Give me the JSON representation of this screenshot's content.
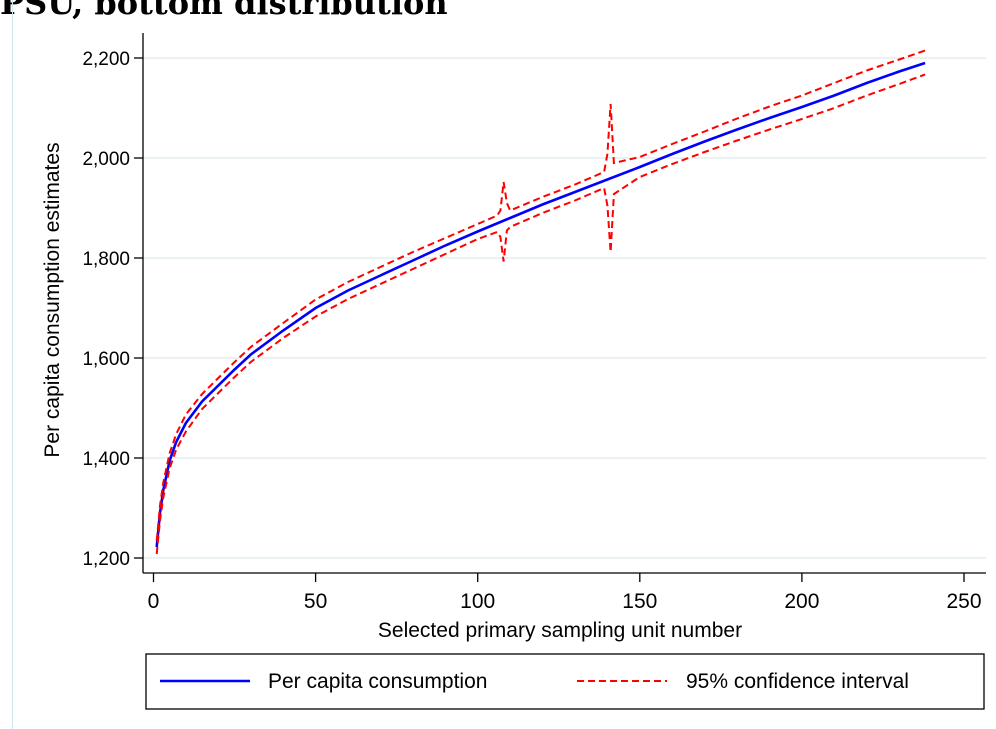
{
  "page": {
    "title_fragment": "PSU, bottom distribution"
  },
  "chart_data": {
    "type": "line",
    "xlabel": "Selected primary sampling unit number",
    "ylabel": "Per capita consumption estimates",
    "xlim": [
      0,
      250
    ],
    "ylim": [
      1200,
      2200
    ],
    "xticks": [
      0,
      50,
      100,
      150,
      200,
      250
    ],
    "xtick_labels": [
      "0",
      "50",
      "100",
      "150",
      "200",
      "250"
    ],
    "yticks": [
      1200,
      1400,
      1600,
      1800,
      2000,
      2200
    ],
    "ytick_labels": [
      "1,200",
      "1,400",
      "1,600",
      "1,800",
      "2,000",
      "2,200"
    ],
    "grid": "horizontal",
    "legend_position": "bottom",
    "series": [
      {
        "name": "Per capita consumption",
        "color": "#0000ff",
        "style": "solid",
        "x": [
          1,
          2,
          3,
          5,
          7,
          10,
          15,
          20,
          25,
          30,
          40,
          50,
          60,
          70,
          80,
          90,
          100,
          110,
          120,
          130,
          140,
          150,
          160,
          170,
          180,
          190,
          200,
          210,
          220,
          230,
          238
        ],
        "y": [
          1222,
          1290,
          1335,
          1395,
          1432,
          1470,
          1513,
          1545,
          1577,
          1607,
          1655,
          1700,
          1735,
          1765,
          1795,
          1825,
          1853,
          1880,
          1907,
          1932,
          1957,
          1982,
          2008,
          2033,
          2057,
          2080,
          2102,
          2125,
          2150,
          2173,
          2190
        ]
      },
      {
        "name": "95% confidence interval",
        "color": "#ff0000",
        "style": "dashed",
        "bounds": {
          "upper": {
            "x": [
              1,
              2,
              3,
              5,
              7,
              10,
              15,
              20,
              25,
              30,
              40,
              50,
              60,
              70,
              80,
              90,
              100,
              106,
              107,
              108,
              109,
              110,
              120,
              130,
              139,
              140,
              141,
              142,
              150,
              160,
              170,
              180,
              190,
              200,
              210,
              220,
              230,
              238
            ],
            "y": [
              1235,
              1305,
              1350,
              1410,
              1448,
              1487,
              1528,
              1560,
              1592,
              1622,
              1670,
              1717,
              1752,
              1782,
              1812,
              1840,
              1868,
              1885,
              1895,
              1952,
              1910,
              1895,
              1922,
              1947,
              1972,
              2008,
              2108,
              1990,
              2002,
              2028,
              2053,
              2079,
              2103,
              2125,
              2150,
              2175,
              2197,
              2215
            ]
          },
          "lower": {
            "x": [
              1,
              2,
              3,
              5,
              7,
              10,
              15,
              20,
              25,
              30,
              40,
              50,
              60,
              70,
              80,
              90,
              100,
              106,
              107,
              108,
              109,
              110,
              120,
              130,
              139,
              140,
              141,
              142,
              150,
              160,
              170,
              180,
              190,
              200,
              210,
              220,
              230,
              238
            ],
            "y": [
              1208,
              1275,
              1320,
              1380,
              1417,
              1453,
              1498,
              1530,
              1562,
              1592,
              1640,
              1683,
              1718,
              1748,
              1778,
              1808,
              1838,
              1852,
              1842,
              1793,
              1855,
              1862,
              1890,
              1915,
              1940,
              1905,
              1812,
              1928,
              1962,
              1988,
              2012,
              2035,
              2057,
              2078,
              2100,
              2125,
              2148,
              2167
            ]
          }
        }
      }
    ]
  }
}
